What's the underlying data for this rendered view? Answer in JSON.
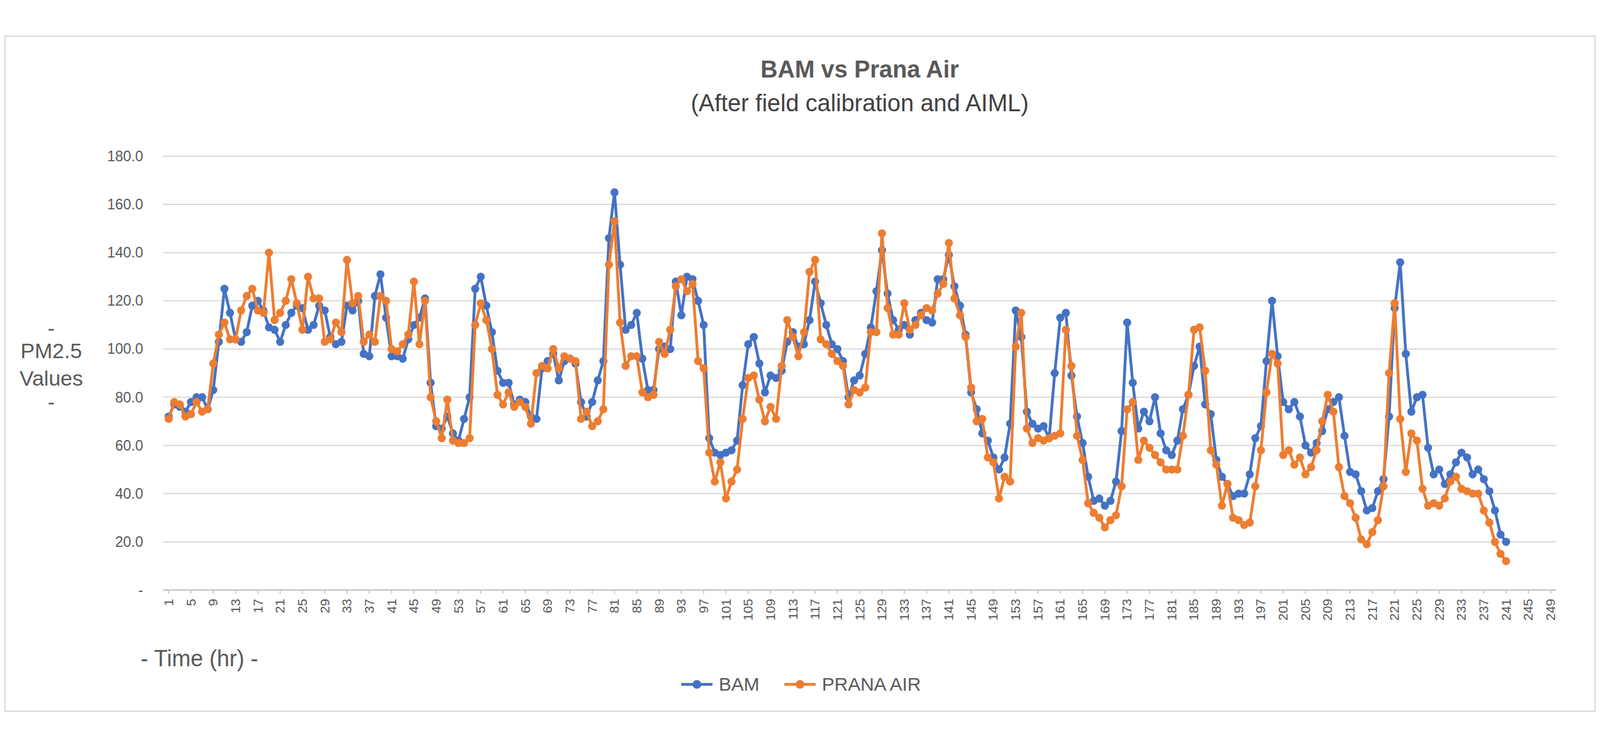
{
  "chart_data": {
    "type": "line",
    "title": "BAM vs Prana Air",
    "subtitle": "(After field calibration and AIML)",
    "x_label": "- Time (hr) -",
    "y_label": "- PM2.5 Values -",
    "x": [
      1,
      2,
      3,
      4,
      5,
      6,
      7,
      8,
      9,
      10,
      11,
      12,
      13,
      14,
      15,
      16,
      17,
      18,
      19,
      20,
      21,
      22,
      23,
      24,
      25,
      26,
      27,
      28,
      29,
      30,
      31,
      32,
      33,
      34,
      35,
      36,
      37,
      38,
      39,
      40,
      41,
      42,
      43,
      44,
      45,
      46,
      47,
      48,
      49,
      50,
      51,
      52,
      53,
      54,
      55,
      56,
      57,
      58,
      59,
      60,
      61,
      62,
      63,
      64,
      65,
      66,
      67,
      68,
      69,
      70,
      71,
      72,
      73,
      74,
      75,
      76,
      77,
      78,
      79,
      80,
      81,
      82,
      83,
      84,
      85,
      86,
      87,
      88,
      89,
      90,
      91,
      92,
      93,
      94,
      95,
      96,
      97,
      98,
      99,
      100,
      101,
      102,
      103,
      104,
      105,
      106,
      107,
      108,
      109,
      110,
      111,
      112,
      113,
      114,
      115,
      116,
      117,
      118,
      119,
      120,
      121,
      122,
      123,
      124,
      125,
      126,
      127,
      128,
      129,
      130,
      131,
      132,
      133,
      134,
      135,
      136,
      137,
      138,
      139,
      140,
      141,
      142,
      143,
      144,
      145,
      146,
      147,
      148,
      149,
      150,
      151,
      152,
      153,
      154,
      155,
      156,
      157,
      158,
      159,
      160,
      161,
      162,
      163,
      164,
      165,
      166,
      167,
      168,
      169,
      170,
      171,
      172,
      173,
      174,
      175,
      176,
      177,
      178,
      179,
      180,
      181,
      182,
      183,
      184,
      185,
      186,
      187,
      188,
      189,
      190,
      191,
      192,
      193,
      194,
      195,
      196,
      197,
      198,
      199,
      200,
      201,
      202,
      203,
      204,
      205,
      206,
      207,
      208,
      209,
      210,
      211,
      212,
      213,
      214,
      215,
      216,
      217,
      218,
      219,
      220,
      221,
      222,
      223,
      224,
      225,
      226,
      227,
      228,
      229,
      230,
      231,
      232,
      233,
      234,
      235,
      236,
      237,
      238,
      239,
      240,
      241
    ],
    "series": [
      {
        "name": "BAM",
        "color": "#4472c4",
        "marker": "circle",
        "values": [
          72,
          77,
          76,
          74,
          78,
          80,
          80,
          75,
          83,
          103,
          125,
          115,
          104,
          103,
          107,
          118,
          120,
          116,
          109,
          108,
          103,
          110,
          115,
          118,
          117,
          108,
          110,
          118,
          116,
          105,
          102,
          103,
          118,
          116,
          120,
          98,
          97,
          122,
          131,
          113,
          97,
          97,
          96,
          104,
          110,
          113,
          121,
          86,
          68,
          67,
          72,
          65,
          62,
          71,
          80,
          125,
          130,
          118,
          107,
          91,
          86,
          86,
          77,
          79,
          78,
          72,
          71,
          92,
          95,
          98,
          87,
          95,
          96,
          94,
          78,
          72,
          78,
          87,
          95,
          146,
          165,
          135,
          108,
          110,
          115,
          96,
          83,
          83,
          100,
          101,
          100,
          128,
          114,
          130,
          129,
          120,
          110,
          63,
          57,
          56,
          57,
          58,
          62,
          85,
          102,
          105,
          94,
          82,
          89,
          88,
          91,
          103,
          107,
          101,
          102,
          112,
          128,
          119,
          110,
          102,
          100,
          95,
          80,
          87,
          89,
          98,
          109,
          124,
          141,
          123,
          112,
          108,
          110,
          106,
          112,
          115,
          112,
          111,
          129,
          129,
          139,
          126,
          118,
          106,
          82,
          75,
          65,
          62,
          55,
          50,
          55,
          69,
          116,
          105,
          74,
          69,
          67,
          68,
          63,
          90,
          113,
          115,
          89,
          72,
          61,
          47,
          37,
          38,
          35,
          37,
          45,
          66,
          111,
          86,
          67,
          74,
          70,
          80,
          65,
          58,
          56,
          62,
          75,
          81,
          93,
          101,
          77,
          73,
          54,
          47,
          44,
          39,
          40,
          40,
          48,
          63,
          68,
          95,
          120,
          97,
          78,
          75,
          78,
          72,
          60,
          57,
          61,
          66,
          75,
          78,
          80,
          64,
          49,
          48,
          41,
          33,
          34,
          41,
          46,
          72,
          117,
          136,
          98,
          74,
          80,
          81,
          59,
          48,
          50,
          44,
          48,
          53,
          57,
          55,
          48,
          50,
          46,
          41,
          33,
          23,
          20
        ]
      },
      {
        "name": "PRANA AIR",
        "color": "#ed7d31",
        "marker": "circle",
        "values": [
          71,
          78,
          77,
          72,
          73,
          78,
          74,
          75,
          94,
          106,
          111,
          104,
          104,
          116,
          122,
          125,
          116,
          115,
          140,
          112,
          115,
          120,
          129,
          119,
          108,
          130,
          121,
          121,
          103,
          104,
          111,
          107,
          137,
          119,
          122,
          103,
          106,
          103,
          122,
          120,
          100,
          99,
          102,
          106,
          128,
          102,
          120,
          80,
          70,
          63,
          79,
          62,
          61,
          61,
          63,
          110,
          119,
          112,
          100,
          81,
          77,
          82,
          76,
          78,
          76,
          69,
          90,
          93,
          92,
          100,
          92,
          97,
          96,
          95,
          71,
          74,
          68,
          70,
          75,
          135,
          153,
          111,
          93,
          97,
          97,
          82,
          80,
          81,
          103,
          98,
          108,
          126,
          129,
          124,
          127,
          95,
          92,
          57,
          45,
          53,
          38,
          45,
          50,
          71,
          88,
          89,
          79,
          70,
          76,
          71,
          93,
          112,
          105,
          97,
          107,
          132,
          137,
          104,
          102,
          98,
          95,
          93,
          77,
          83,
          82,
          84,
          107,
          107,
          148,
          117,
          106,
          106,
          119,
          108,
          110,
          114,
          117,
          116,
          123,
          127,
          144,
          121,
          114,
          105,
          84,
          70,
          71,
          55,
          53,
          38,
          47,
          45,
          101,
          115,
          67,
          61,
          63,
          62,
          63,
          64,
          65,
          108,
          93,
          64,
          54,
          36,
          32,
          30,
          26,
          29,
          31,
          43,
          75,
          78,
          54,
          62,
          59,
          56,
          53,
          50,
          50,
          50,
          64,
          81,
          108,
          109,
          91,
          58,
          52,
          35,
          44,
          30,
          29,
          27,
          28,
          43,
          58,
          82,
          98,
          94,
          56,
          58,
          52,
          55,
          48,
          51,
          58,
          70,
          81,
          74,
          51,
          39,
          36,
          30,
          21,
          19,
          24,
          29,
          43,
          90,
          119,
          71,
          49,
          65,
          62,
          42,
          35,
          36,
          35,
          38,
          45,
          47,
          42,
          41,
          40,
          40,
          33,
          28,
          20,
          15,
          12
        ]
      }
    ],
    "xlim": [
      0,
      250
    ],
    "xticks": [
      1,
      5,
      9,
      13,
      17,
      21,
      25,
      29,
      33,
      37,
      41,
      45,
      49,
      53,
      57,
      61,
      65,
      69,
      73,
      77,
      81,
      85,
      89,
      93,
      97,
      101,
      105,
      109,
      113,
      117,
      121,
      125,
      129,
      133,
      137,
      141,
      145,
      149,
      153,
      157,
      161,
      165,
      169,
      173,
      177,
      181,
      185,
      189,
      193,
      197,
      201,
      205,
      209,
      213,
      217,
      221,
      225,
      229,
      233,
      237,
      241,
      245,
      249
    ],
    "ylim": [
      0,
      180
    ],
    "yticks": [
      {
        "value": 0,
        "label": "-"
      },
      {
        "value": 20,
        "label": "20.0"
      },
      {
        "value": 40,
        "label": "40.0"
      },
      {
        "value": 60,
        "label": "60.0"
      },
      {
        "value": 80,
        "label": "80.0"
      },
      {
        "value": 100,
        "label": "100.0"
      },
      {
        "value": 120,
        "label": "120.0"
      },
      {
        "value": 140,
        "label": "140.0"
      },
      {
        "value": 160,
        "label": "160.0"
      },
      {
        "value": 180,
        "label": "180.0"
      }
    ],
    "grid": true,
    "legend": "bottom"
  }
}
